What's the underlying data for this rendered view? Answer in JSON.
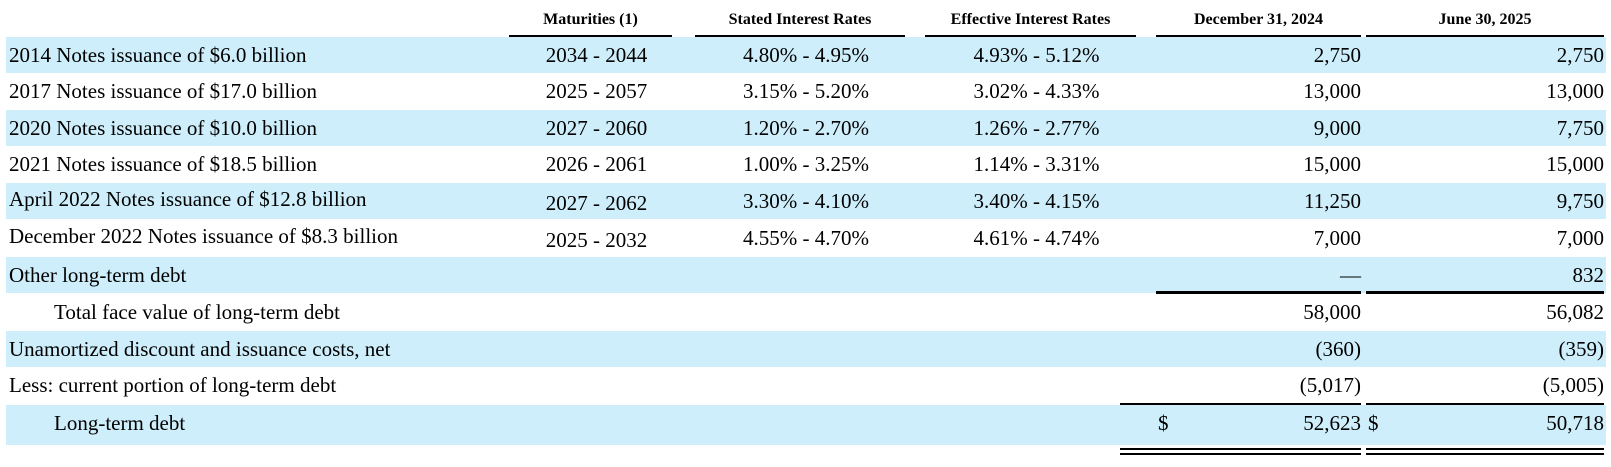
{
  "columns": {
    "maturities": "Maturities (1)",
    "stated": "Stated Interest Rates",
    "effective": "Effective Interest Rates",
    "dec2024": "December 31, 2024",
    "jun2025": "June 30, 2025"
  },
  "rows": [
    {
      "label": "2014 Notes issuance of $6.0 billion",
      "maturities": "2034 - 2044",
      "stated": "4.80% - 4.95%",
      "effective": "4.93% - 5.12%",
      "dec2024": "2,750",
      "jun2025": "2,750"
    },
    {
      "label": "2017 Notes issuance of $17.0 billion",
      "maturities": "2025 - 2057",
      "stated": "3.15% - 5.20%",
      "effective": "3.02% - 4.33%",
      "dec2024": "13,000",
      "jun2025": "13,000"
    },
    {
      "label": "2020 Notes issuance of $10.0 billion",
      "maturities": "2027 - 2060",
      "stated": "1.20% - 2.70%",
      "effective": "1.26% - 2.77%",
      "dec2024": "9,000",
      "jun2025": "7,750"
    },
    {
      "label": "2021 Notes issuance of $18.5 billion",
      "maturities": "2026 - 2061",
      "stated": "1.00% - 3.25%",
      "effective": "1.14% - 3.31%",
      "dec2024": "15,000",
      "jun2025": "15,000"
    },
    {
      "label": "April 2022 Notes issuance of $12.8 billion",
      "maturities": "2027 - 2062",
      "stated": "3.30% - 4.10%",
      "effective": "3.40% - 4.15%",
      "dec2024": "11,250",
      "jun2025": "9,750"
    },
    {
      "label": "December 2022 Notes issuance of $8.3 billion",
      "maturities": "2025 - 2032",
      "stated": "4.55% - 4.70%",
      "effective": "4.61% - 4.74%",
      "dec2024": "7,000",
      "jun2025": "7,000"
    },
    {
      "label": "Other long-term debt",
      "dec2024": "—",
      "jun2025": "832"
    }
  ],
  "total_face": {
    "label": "Total face value of long-term debt",
    "dec2024": "58,000",
    "jun2025": "56,082"
  },
  "unamortized": {
    "label": "Unamortized discount and issuance costs, net",
    "dec2024": "(360)",
    "jun2025": "(359)"
  },
  "current_portion": {
    "label": "Less: current portion of long-term debt",
    "dec2024": "(5,017)",
    "jun2025": "(5,005)"
  },
  "long_term_debt": {
    "label": "Long-term debt",
    "currency": "$",
    "dec2024": "52,623",
    "jun2025": "50,718"
  },
  "colors": {
    "shade": "#cdeefa",
    "text": "#000000"
  }
}
